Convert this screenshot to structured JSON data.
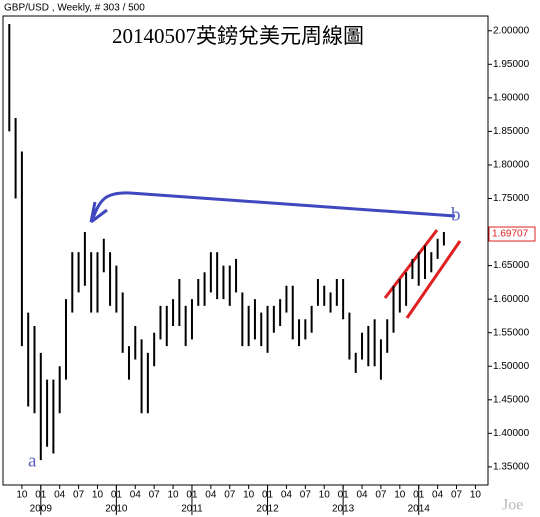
{
  "chart_data": {
    "type": "ohlc",
    "header": "GBP/USD , Weekly, # 303 / 500",
    "title": "20140507英鎊兌美元周線圖",
    "color": "#000000",
    "x": [
      "2008-08",
      "2008-09",
      "2008-10",
      "2008-11",
      "2008-12",
      "2009-01",
      "2009-02",
      "2009-03",
      "2009-04",
      "2009-05",
      "2009-06",
      "2009-07",
      "2009-08",
      "2009-09",
      "2009-10",
      "2009-11",
      "2009-12",
      "2010-01",
      "2010-02",
      "2010-03",
      "2010-04",
      "2010-05",
      "2010-06",
      "2010-07",
      "2010-08",
      "2010-09",
      "2010-10",
      "2010-11",
      "2010-12",
      "2011-01",
      "2011-02",
      "2011-03",
      "2011-04",
      "2011-05",
      "2011-06",
      "2011-07",
      "2011-08",
      "2011-09",
      "2011-10",
      "2011-11",
      "2011-12",
      "2012-01",
      "2012-02",
      "2012-03",
      "2012-04",
      "2012-05",
      "2012-06",
      "2012-07",
      "2012-08",
      "2012-09",
      "2012-10",
      "2012-11",
      "2012-12",
      "2013-01",
      "2013-02",
      "2013-03",
      "2013-04",
      "2013-05",
      "2013-06",
      "2013-07",
      "2013-08",
      "2013-09",
      "2013-10",
      "2013-11",
      "2013-12",
      "2014-01",
      "2014-02",
      "2014-03",
      "2014-04",
      "2014-05"
    ],
    "high": [
      2.01,
      1.87,
      1.82,
      1.58,
      1.56,
      1.52,
      1.48,
      1.48,
      1.5,
      1.6,
      1.67,
      1.67,
      1.7,
      1.67,
      1.67,
      1.69,
      1.67,
      1.65,
      1.61,
      1.53,
      1.56,
      1.54,
      1.52,
      1.55,
      1.59,
      1.59,
      1.6,
      1.63,
      1.59,
      1.6,
      1.63,
      1.64,
      1.67,
      1.67,
      1.65,
      1.65,
      1.66,
      1.61,
      1.59,
      1.6,
      1.58,
      1.59,
      1.59,
      1.6,
      1.62,
      1.62,
      1.57,
      1.57,
      1.59,
      1.63,
      1.62,
      1.61,
      1.63,
      1.63,
      1.58,
      1.52,
      1.55,
      1.56,
      1.57,
      1.54,
      1.57,
      1.62,
      1.63,
      1.64,
      1.66,
      1.67,
      1.68,
      1.67,
      1.69,
      1.7
    ],
    "low": [
      1.85,
      1.75,
      1.53,
      1.44,
      1.43,
      1.36,
      1.38,
      1.37,
      1.43,
      1.48,
      1.58,
      1.61,
      1.62,
      1.58,
      1.58,
      1.64,
      1.59,
      1.58,
      1.52,
      1.48,
      1.51,
      1.43,
      1.43,
      1.5,
      1.54,
      1.53,
      1.56,
      1.56,
      1.53,
      1.54,
      1.59,
      1.59,
      1.61,
      1.6,
      1.6,
      1.59,
      1.61,
      1.53,
      1.53,
      1.54,
      1.53,
      1.52,
      1.55,
      1.56,
      1.58,
      1.54,
      1.53,
      1.54,
      1.55,
      1.59,
      1.59,
      1.58,
      1.59,
      1.57,
      1.51,
      1.49,
      1.51,
      1.5,
      1.5,
      1.48,
      1.52,
      1.55,
      1.58,
      1.59,
      1.63,
      1.62,
      1.63,
      1.64,
      1.66,
      1.68
    ],
    "last_price": 1.69707,
    "xlim": [
      "2008-07",
      "2014-12"
    ],
    "xticks": [
      {
        "value": "2008-10",
        "label": "10"
      },
      {
        "value": "2009-01",
        "label": "01"
      },
      {
        "value": "2009-04",
        "label": "04"
      },
      {
        "value": "2009-07",
        "label": "07"
      },
      {
        "value": "2009-10",
        "label": "10"
      },
      {
        "value": "2010-01",
        "label": "01"
      },
      {
        "value": "2010-04",
        "label": "04"
      },
      {
        "value": "2010-07",
        "label": "07"
      },
      {
        "value": "2010-10",
        "label": "10"
      },
      {
        "value": "2011-01",
        "label": "01"
      },
      {
        "value": "2011-04",
        "label": "04"
      },
      {
        "value": "2011-07",
        "label": "07"
      },
      {
        "value": "2011-10",
        "label": "10"
      },
      {
        "value": "2012-01",
        "label": "01"
      },
      {
        "value": "2012-04",
        "label": "04"
      },
      {
        "value": "2012-07",
        "label": "07"
      },
      {
        "value": "2012-10",
        "label": "10"
      },
      {
        "value": "2013-01",
        "label": "01"
      },
      {
        "value": "2013-04",
        "label": "04"
      },
      {
        "value": "2013-07",
        "label": "07"
      },
      {
        "value": "2013-10",
        "label": "10"
      },
      {
        "value": "2014-01",
        "label": "01"
      },
      {
        "value": "2014-04",
        "label": "04"
      },
      {
        "value": "2014-07",
        "label": "07"
      },
      {
        "value": "2014-10",
        "label": "10"
      }
    ],
    "year_ticks": [
      {
        "value": "2009-01",
        "label": "2009"
      },
      {
        "value": "2010-01",
        "label": "2010"
      },
      {
        "value": "2011-01",
        "label": "2011"
      },
      {
        "value": "2012-01",
        "label": "2012"
      },
      {
        "value": "2013-01",
        "label": "2013"
      },
      {
        "value": "2014-01",
        "label": "2014"
      }
    ],
    "ylim": [
      1.323,
      2.022
    ],
    "yticks": [
      {
        "value": 1.35,
        "label": "1.35000"
      },
      {
        "value": 1.4,
        "label": "1.40000"
      },
      {
        "value": 1.45,
        "label": "1.45000"
      },
      {
        "value": 1.5,
        "label": "1.50000"
      },
      {
        "value": 1.55,
        "label": "1.55000"
      },
      {
        "value": 1.6,
        "label": "1.60000"
      },
      {
        "value": 1.65,
        "label": "1.65000"
      },
      {
        "value": 1.7,
        "label": "1.70000"
      },
      {
        "value": 1.75,
        "label": "1.75000"
      },
      {
        "value": 1.8,
        "label": "1.80000"
      },
      {
        "value": 1.85,
        "label": "1.85000"
      },
      {
        "value": 1.9,
        "label": "1.90000"
      },
      {
        "value": 1.95,
        "label": "1.95000"
      },
      {
        "value": 2,
        "label": "2.00000"
      }
    ],
    "annotations": [
      "a",
      "b",
      "Joe"
    ]
  }
}
